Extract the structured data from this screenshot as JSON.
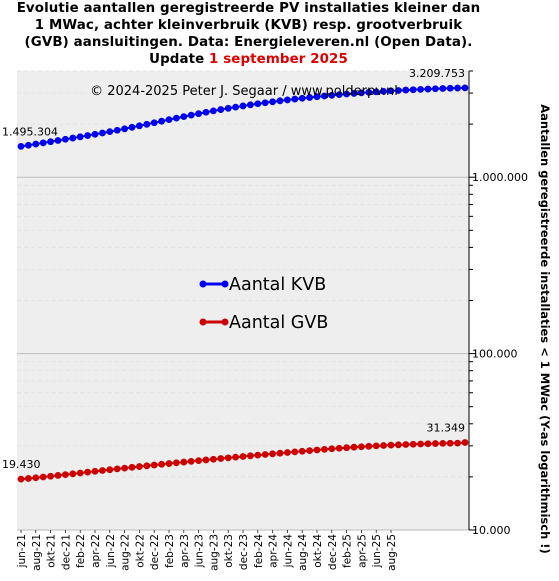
{
  "title": {
    "line1": "Evolutie aantallen geregistreerde PV installaties kleiner dan",
    "line2": "1 MWac, achter kleinverbruik (KVB) resp. grootverbruik",
    "line3": "(GVB) aansluitingen. Data: Energieleveren.nl (Open Data).",
    "line4_prefix": "Update ",
    "line4_date": "1 september 2025"
  },
  "colors": {
    "kvb": "#0000ee",
    "gvb": "#cc0000",
    "plot_bg": "#eeeeee",
    "major_grid": "#bbbbbb",
    "minor_grid": "#dddddd",
    "date_highlight": "#dd0000"
  },
  "chart_data": {
    "type": "line",
    "credit": "© 2024-2025  Peter J. Segaar / www.polderpv.nl",
    "ylabel": "Aantallen geregistreerde installaties < 1 MWac (Y-as logarithmisch !)",
    "ylog": true,
    "ylim": [
      10000,
      4000000
    ],
    "y_ticks": [
      {
        "value": 10000,
        "label": "10.000"
      },
      {
        "value": 100000,
        "label": "100.000"
      },
      {
        "value": 1000000,
        "label": "1.000.000"
      }
    ],
    "x_start": "2021-06",
    "x_tick_labels": [
      "jun-21",
      "aug-21",
      "okt-21",
      "dec-21",
      "feb-22",
      "apr-22",
      "jun-22",
      "aug-22",
      "okt-22",
      "dec-22",
      "feb-23",
      "apr-23",
      "jun-23",
      "aug-23",
      "okt-23",
      "dec-23",
      "feb-24",
      "apr-24",
      "jun-24",
      "aug-24",
      "okt-24",
      "dec-24",
      "feb-25",
      "apr-25",
      "jun-25",
      "aug-25"
    ],
    "legend_position": "middle-left",
    "series": [
      {
        "name": "Aantal KVB",
        "start_label": "1.495.304",
        "end_label": "3.209.753",
        "values": [
          1495304,
          1517000,
          1541000,
          1566000,
          1590000,
          1615000,
          1641000,
          1667000,
          1694000,
          1722000,
          1751000,
          1781000,
          1813000,
          1846000,
          1881000,
          1918000,
          1956000,
          1995000,
          2036000,
          2078000,
          2120000,
          2163000,
          2206000,
          2249000,
          2292000,
          2335000,
          2377000,
          2418000,
          2458000,
          2497000,
          2535000,
          2572000,
          2608000,
          2643000,
          2677000,
          2710000,
          2742000,
          2773000,
          2803000,
          2832000,
          2860000,
          2887000,
          2913000,
          2938000,
          2962000,
          2985000,
          3007000,
          3028000,
          3048000,
          3067000,
          3085000,
          3102000,
          3118000,
          3133000,
          3147000,
          3160000,
          3172000,
          3183000,
          3193000,
          3202000,
          3209753
        ]
      },
      {
        "name": "Aantal GVB",
        "start_label": "19.430",
        "end_label": "31.349",
        "values": [
          19430,
          19600,
          19780,
          19970,
          20170,
          20380,
          20600,
          20820,
          21050,
          21280,
          21510,
          21740,
          21970,
          22200,
          22430,
          22660,
          22890,
          23120,
          23350,
          23580,
          23810,
          24040,
          24270,
          24500,
          24730,
          24960,
          25190,
          25420,
          25650,
          25880,
          26110,
          26340,
          26570,
          26800,
          27030,
          27260,
          27490,
          27720,
          27950,
          28180,
          28410,
          28640,
          28870,
          29080,
          29280,
          29470,
          29650,
          29820,
          29980,
          30130,
          30270,
          30400,
          30520,
          30630,
          30730,
          30820,
          30900,
          30970,
          31030,
          31080,
          31349
        ]
      }
    ]
  }
}
